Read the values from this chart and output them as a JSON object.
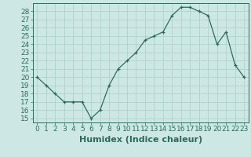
{
  "x": [
    0,
    1,
    2,
    3,
    4,
    5,
    6,
    7,
    8,
    9,
    10,
    11,
    12,
    13,
    14,
    15,
    16,
    17,
    18,
    19,
    20,
    21,
    22,
    23
  ],
  "y": [
    20,
    19,
    18,
    17,
    17,
    17,
    15,
    16,
    19,
    21,
    22,
    23,
    24.5,
    25,
    25.5,
    27.5,
    28.5,
    28.5,
    28,
    27.5,
    24,
    25.5,
    21.5,
    20
  ],
  "title": "",
  "xlabel": "Humidex (Indice chaleur)",
  "ylabel": "",
  "xlim": [
    -0.5,
    23.5
  ],
  "ylim": [
    14.5,
    29
  ],
  "yticks": [
    15,
    16,
    17,
    18,
    19,
    20,
    21,
    22,
    23,
    24,
    25,
    26,
    27,
    28
  ],
  "xticks": [
    0,
    1,
    2,
    3,
    4,
    5,
    6,
    7,
    8,
    9,
    10,
    11,
    12,
    13,
    14,
    15,
    16,
    17,
    18,
    19,
    20,
    21,
    22,
    23
  ],
  "line_color": "#2e6b5e",
  "marker": "+",
  "bg_color": "#cde8e4",
  "grid_color": "#aacfc8",
  "tick_label_color": "#2e6b5e",
  "xlabel_color": "#2e6b5e",
  "xlabel_fontsize": 8,
  "tick_fontsize": 6.5
}
